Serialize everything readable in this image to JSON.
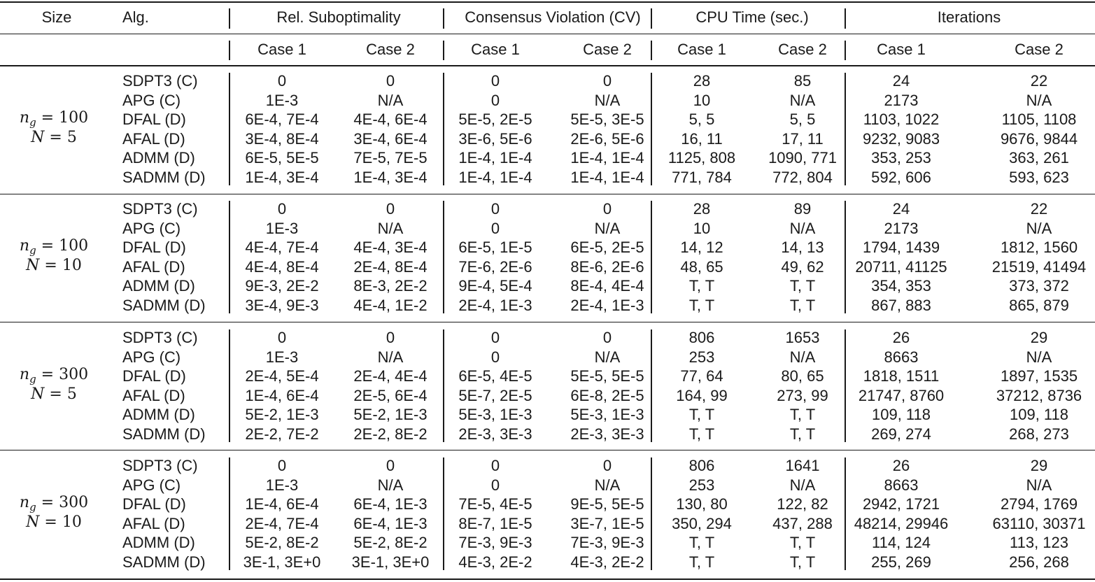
{
  "header": {
    "size": "Size",
    "alg": "Alg.",
    "groups": [
      "Rel. Suboptimality",
      "Consensus Violation (CV)",
      "CPU Time (sec.)",
      "Iterations"
    ],
    "cases": [
      "Case 1",
      "Case 2",
      "Case 1",
      "Case 2",
      "Case 1",
      "Case 2",
      "Case 1",
      "Case 2"
    ]
  },
  "blocks": [
    {
      "ng_label": "n",
      "ng_sub": "g",
      "ng_value": "100",
      "N_label": "N",
      "N_value": "5",
      "rows": [
        {
          "alg": "SDPT3 (C)",
          "vals": [
            "0",
            "0",
            "0",
            "0",
            "28",
            "85",
            "24",
            "22"
          ]
        },
        {
          "alg": "APG (C)",
          "vals": [
            "1E-3",
            "N/A",
            "0",
            "N/A",
            "10",
            "N/A",
            "2173",
            "N/A"
          ]
        },
        {
          "alg": "DFAL (D)",
          "vals": [
            "6E-4, 7E-4",
            "4E-4, 6E-4",
            "5E-5, 2E-5",
            "5E-5, 3E-5",
            "5, 5",
            "5, 5",
            "1103, 1022",
            "1105, 1108"
          ]
        },
        {
          "alg": "AFAL (D)",
          "vals": [
            "3E-4, 8E-4",
            "3E-4, 6E-4",
            "3E-6, 5E-6",
            "2E-6, 5E-6",
            "16, 11",
            "17, 11",
            "9232, 9083",
            "9676, 9844"
          ]
        },
        {
          "alg": "ADMM (D)",
          "vals": [
            "6E-5, 5E-5",
            "7E-5, 7E-5",
            "1E-4, 1E-4",
            "1E-4, 1E-4",
            "1125, 808",
            "1090, 771",
            "353, 253",
            "363, 261"
          ]
        },
        {
          "alg": "SADMM (D)",
          "vals": [
            "1E-4, 3E-4",
            "1E-4, 3E-4",
            "1E-4, 1E-4",
            "1E-4, 1E-4",
            "771, 784",
            "772, 804",
            "592, 606",
            "593, 623"
          ]
        }
      ]
    },
    {
      "ng_label": "n",
      "ng_sub": "g",
      "ng_value": "100",
      "N_label": "N",
      "N_value": "10",
      "rows": [
        {
          "alg": "SDPT3 (C)",
          "vals": [
            "0",
            "0",
            "0",
            "0",
            "28",
            "89",
            "24",
            "22"
          ]
        },
        {
          "alg": "APG (C)",
          "vals": [
            "1E-3",
            "N/A",
            "0",
            "N/A",
            "10",
            "N/A",
            "2173",
            "N/A"
          ]
        },
        {
          "alg": "DFAL (D)",
          "vals": [
            "4E-4, 7E-4",
            "4E-4, 3E-4",
            "6E-5, 1E-5",
            "6E-5, 2E-5",
            "14, 12",
            "14, 13",
            "1794, 1439",
            "1812, 1560"
          ]
        },
        {
          "alg": "AFAL (D)",
          "vals": [
            "4E-4, 8E-4",
            "2E-4, 8E-4",
            "7E-6, 2E-6",
            "8E-6, 2E-6",
            "48, 65",
            "49, 62",
            "20711, 41125",
            "21519, 41494"
          ]
        },
        {
          "alg": "ADMM (D)",
          "vals": [
            "9E-3, 2E-2",
            "8E-3, 2E-2",
            "9E-4, 5E-4",
            "8E-4, 4E-4",
            "T, T",
            "T, T",
            "354, 353",
            "373, 372"
          ]
        },
        {
          "alg": "SADMM (D)",
          "vals": [
            "3E-4, 9E-3",
            "4E-4, 1E-2",
            "2E-4, 1E-3",
            "2E-4, 1E-3",
            "T, T",
            "T, T",
            "867, 883",
            "865, 879"
          ]
        }
      ]
    },
    {
      "ng_label": "n",
      "ng_sub": "g",
      "ng_value": "300",
      "N_label": "N",
      "N_value": "5",
      "rows": [
        {
          "alg": "SDPT3 (C)",
          "vals": [
            "0",
            "0",
            "0",
            "0",
            "806",
            "1653",
            "26",
            "29"
          ]
        },
        {
          "alg": "APG (C)",
          "vals": [
            "1E-3",
            "N/A",
            "0",
            "N/A",
            "253",
            "N/A",
            "8663",
            "N/A"
          ]
        },
        {
          "alg": "DFAL (D)",
          "vals": [
            "2E-4, 5E-4",
            "2E-4, 4E-4",
            "6E-5, 4E-5",
            "5E-5, 5E-5",
            "77, 64",
            "80, 65",
            "1818, 1511",
            "1897, 1535"
          ]
        },
        {
          "alg": "AFAL (D)",
          "vals": [
            "1E-4, 6E-4",
            "2E-5, 6E-4",
            "5E-7, 2E-5",
            "6E-8, 2E-5",
            "164, 99",
            "273, 99",
            "21747, 8760",
            "37212, 8736"
          ]
        },
        {
          "alg": "ADMM (D)",
          "vals": [
            "5E-2, 1E-3",
            "5E-2, 1E-3",
            "5E-3, 1E-3",
            "5E-3, 1E-3",
            "T, T",
            "T, T",
            "109, 118",
            "109, 118"
          ]
        },
        {
          "alg": "SADMM (D)",
          "vals": [
            "2E-2, 7E-2",
            "2E-2, 8E-2",
            "2E-3, 3E-3",
            "2E-3, 3E-3",
            "T, T",
            "T, T",
            "269, 274",
            "268, 273"
          ]
        }
      ]
    },
    {
      "ng_label": "n",
      "ng_sub": "g",
      "ng_value": "300",
      "N_label": "N",
      "N_value": "10",
      "rows": [
        {
          "alg": "SDPT3 (C)",
          "vals": [
            "0",
            "0",
            "0",
            "0",
            "806",
            "1641",
            "26",
            "29"
          ]
        },
        {
          "alg": "APG (C)",
          "vals": [
            "1E-3",
            "N/A",
            "0",
            "N/A",
            "253",
            "N/A",
            "8663",
            "N/A"
          ]
        },
        {
          "alg": "DFAL (D)",
          "vals": [
            "1E-4, 6E-4",
            "6E-4, 1E-3",
            "7E-5, 4E-5",
            "9E-5, 5E-5",
            "130, 80",
            "122, 82",
            "2942, 1721",
            "2794, 1769"
          ]
        },
        {
          "alg": "AFAL (D)",
          "vals": [
            "2E-4, 7E-4",
            "6E-4, 1E-3",
            "8E-7, 1E-5",
            "3E-7, 1E-5",
            "350, 294",
            "437, 288",
            "48214, 29946",
            "63110, 30371"
          ]
        },
        {
          "alg": "ADMM (D)",
          "vals": [
            "5E-2, 8E-2",
            "5E-2, 8E-2",
            "7E-3, 9E-3",
            "7E-3, 9E-3",
            "T, T",
            "T, T",
            "114, 124",
            "113, 123"
          ]
        },
        {
          "alg": "SADMM (D)",
          "vals": [
            "3E-1, 3E+0",
            "3E-1, 3E+0",
            "4E-3, 2E-2",
            "4E-3, 2E-2",
            "T, T",
            "T, T",
            "255, 269",
            "256, 268"
          ]
        }
      ]
    }
  ]
}
